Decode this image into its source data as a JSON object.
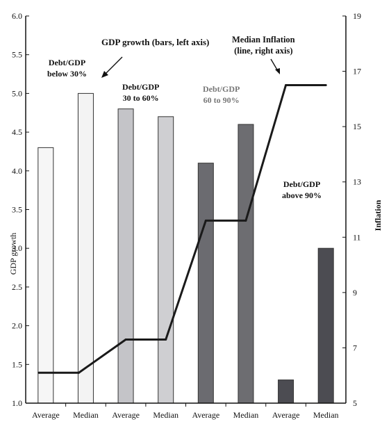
{
  "chart_data": {
    "type": "bar",
    "categories": [
      "Average",
      "Median",
      "Average",
      "Median",
      "Average",
      "Median",
      "Average",
      "Median"
    ],
    "groups": [
      "Debt/GDP below 30%",
      "Debt/GDP 30 to 60%",
      "Debt/GDP 60 to 90%",
      "Debt/GDP above 90%"
    ],
    "series": [
      {
        "name": "GDP growth (bars, left axis)",
        "type": "bar",
        "axis": "left",
        "values": [
          4.3,
          5.0,
          4.8,
          4.7,
          4.1,
          4.6,
          1.3,
          3.0
        ]
      },
      {
        "name": "Median Inflation (line, right axis)",
        "type": "line",
        "axis": "right",
        "values": [
          6.1,
          6.1,
          7.3,
          7.3,
          11.6,
          11.6,
          16.5,
          16.5
        ]
      }
    ],
    "bar_colors": [
      "#f6f6f6",
      "#f3f3f3",
      "#c4c4c8",
      "#cfcfd2",
      "#6b6b70",
      "#6d6d71",
      "#4c4c52",
      "#4c4c52"
    ],
    "line_color": "#1a1a1a",
    "ylabel_left": "GDP growth",
    "ylabel_right": "Inflation",
    "ylim_left": [
      1.0,
      6.0
    ],
    "ylim_right": [
      5,
      19
    ],
    "yticks_left": [
      "1.0",
      "1.5",
      "2.0",
      "2.5",
      "3.0",
      "3.5",
      "4.0",
      "4.5",
      "5.0",
      "5.5",
      "6.0"
    ],
    "yticks_right": [
      "5",
      "7",
      "9",
      "11",
      "13",
      "15",
      "17",
      "19"
    ],
    "grid": false,
    "annotations": {
      "bars_title": "GDP growth (bars, left axis)",
      "line_title_1": "Median Inflation",
      "line_title_2": "(line, right axis)",
      "group1_l1": "Debt/GDP",
      "group1_l2": "below 30%",
      "group2_l1": "Debt/GDP",
      "group2_l2": "30 to 60%",
      "group3_l1": "Debt/GDP",
      "group3_l2": "60 to 90%",
      "group4_l1": "Debt/GDP",
      "group4_l2": "above 90%"
    }
  }
}
